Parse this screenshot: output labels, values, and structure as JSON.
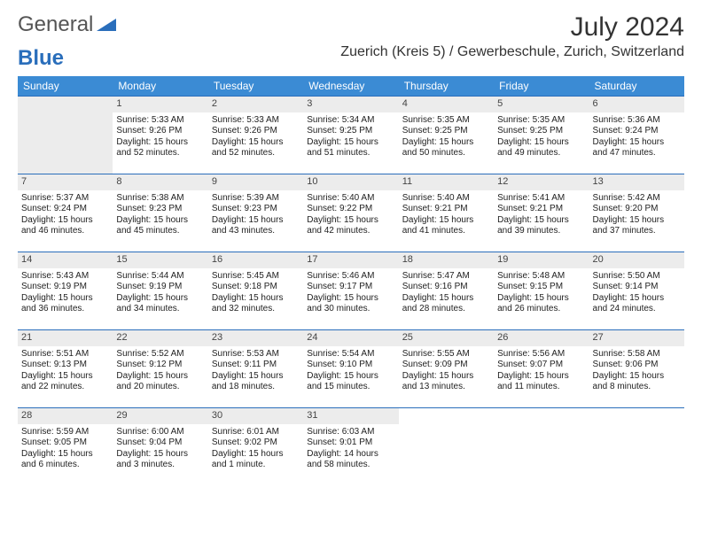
{
  "logo": {
    "text_general": "General",
    "text_blue": "Blue"
  },
  "header": {
    "month_title": "July 2024",
    "location": "Zuerich (Kreis 5) / Gewerbeschule, Zurich, Switzerland"
  },
  "colors": {
    "header_bg": "#3b8bd4",
    "border": "#2a6ebb",
    "daynum_bg": "#ececec"
  },
  "day_labels": [
    "Sunday",
    "Monday",
    "Tuesday",
    "Wednesday",
    "Thursday",
    "Friday",
    "Saturday"
  ],
  "start_offset": 1,
  "days": [
    {
      "n": 1,
      "sunrise": "5:33 AM",
      "sunset": "9:26 PM",
      "daylight": "15 hours and 52 minutes."
    },
    {
      "n": 2,
      "sunrise": "5:33 AM",
      "sunset": "9:26 PM",
      "daylight": "15 hours and 52 minutes."
    },
    {
      "n": 3,
      "sunrise": "5:34 AM",
      "sunset": "9:25 PM",
      "daylight": "15 hours and 51 minutes."
    },
    {
      "n": 4,
      "sunrise": "5:35 AM",
      "sunset": "9:25 PM",
      "daylight": "15 hours and 50 minutes."
    },
    {
      "n": 5,
      "sunrise": "5:35 AM",
      "sunset": "9:25 PM",
      "daylight": "15 hours and 49 minutes."
    },
    {
      "n": 6,
      "sunrise": "5:36 AM",
      "sunset": "9:24 PM",
      "daylight": "15 hours and 47 minutes."
    },
    {
      "n": 7,
      "sunrise": "5:37 AM",
      "sunset": "9:24 PM",
      "daylight": "15 hours and 46 minutes."
    },
    {
      "n": 8,
      "sunrise": "5:38 AM",
      "sunset": "9:23 PM",
      "daylight": "15 hours and 45 minutes."
    },
    {
      "n": 9,
      "sunrise": "5:39 AM",
      "sunset": "9:23 PM",
      "daylight": "15 hours and 43 minutes."
    },
    {
      "n": 10,
      "sunrise": "5:40 AM",
      "sunset": "9:22 PM",
      "daylight": "15 hours and 42 minutes."
    },
    {
      "n": 11,
      "sunrise": "5:40 AM",
      "sunset": "9:21 PM",
      "daylight": "15 hours and 41 minutes."
    },
    {
      "n": 12,
      "sunrise": "5:41 AM",
      "sunset": "9:21 PM",
      "daylight": "15 hours and 39 minutes."
    },
    {
      "n": 13,
      "sunrise": "5:42 AM",
      "sunset": "9:20 PM",
      "daylight": "15 hours and 37 minutes."
    },
    {
      "n": 14,
      "sunrise": "5:43 AM",
      "sunset": "9:19 PM",
      "daylight": "15 hours and 36 minutes."
    },
    {
      "n": 15,
      "sunrise": "5:44 AM",
      "sunset": "9:19 PM",
      "daylight": "15 hours and 34 minutes."
    },
    {
      "n": 16,
      "sunrise": "5:45 AM",
      "sunset": "9:18 PM",
      "daylight": "15 hours and 32 minutes."
    },
    {
      "n": 17,
      "sunrise": "5:46 AM",
      "sunset": "9:17 PM",
      "daylight": "15 hours and 30 minutes."
    },
    {
      "n": 18,
      "sunrise": "5:47 AM",
      "sunset": "9:16 PM",
      "daylight": "15 hours and 28 minutes."
    },
    {
      "n": 19,
      "sunrise": "5:48 AM",
      "sunset": "9:15 PM",
      "daylight": "15 hours and 26 minutes."
    },
    {
      "n": 20,
      "sunrise": "5:50 AM",
      "sunset": "9:14 PM",
      "daylight": "15 hours and 24 minutes."
    },
    {
      "n": 21,
      "sunrise": "5:51 AM",
      "sunset": "9:13 PM",
      "daylight": "15 hours and 22 minutes."
    },
    {
      "n": 22,
      "sunrise": "5:52 AM",
      "sunset": "9:12 PM",
      "daylight": "15 hours and 20 minutes."
    },
    {
      "n": 23,
      "sunrise": "5:53 AM",
      "sunset": "9:11 PM",
      "daylight": "15 hours and 18 minutes."
    },
    {
      "n": 24,
      "sunrise": "5:54 AM",
      "sunset": "9:10 PM",
      "daylight": "15 hours and 15 minutes."
    },
    {
      "n": 25,
      "sunrise": "5:55 AM",
      "sunset": "9:09 PM",
      "daylight": "15 hours and 13 minutes."
    },
    {
      "n": 26,
      "sunrise": "5:56 AM",
      "sunset": "9:07 PM",
      "daylight": "15 hours and 11 minutes."
    },
    {
      "n": 27,
      "sunrise": "5:58 AM",
      "sunset": "9:06 PM",
      "daylight": "15 hours and 8 minutes."
    },
    {
      "n": 28,
      "sunrise": "5:59 AM",
      "sunset": "9:05 PM",
      "daylight": "15 hours and 6 minutes."
    },
    {
      "n": 29,
      "sunrise": "6:00 AM",
      "sunset": "9:04 PM",
      "daylight": "15 hours and 3 minutes."
    },
    {
      "n": 30,
      "sunrise": "6:01 AM",
      "sunset": "9:02 PM",
      "daylight": "15 hours and 1 minute."
    },
    {
      "n": 31,
      "sunrise": "6:03 AM",
      "sunset": "9:01 PM",
      "daylight": "14 hours and 58 minutes."
    }
  ],
  "labels": {
    "sunrise_prefix": "Sunrise: ",
    "sunset_prefix": "Sunset: ",
    "daylight_prefix": "Daylight: "
  }
}
